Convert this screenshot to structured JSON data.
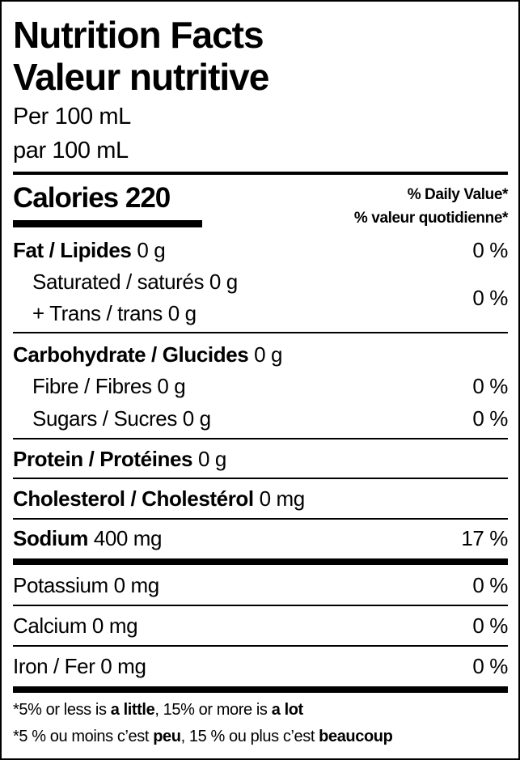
{
  "title_en": "Nutrition Facts",
  "title_fr": "Valeur nutritive",
  "serving_en": "Per 100 mL",
  "serving_fr": "par 100 mL",
  "calories": {
    "label": "Calories",
    "value": "220"
  },
  "dv_header_en": "% Daily Value*",
  "dv_header_fr": "% valeur quotidienne*",
  "rows": {
    "fat": {
      "label": "Fat / Lipides",
      "amount": "0 g",
      "dv": "0 %"
    },
    "saturated": {
      "label": "Saturated / saturés 0 g"
    },
    "trans": {
      "label": "+ Trans / trans 0 g",
      "dv": "0 %"
    },
    "carb": {
      "label": "Carbohydrate / Glucides",
      "amount": "0 g"
    },
    "fibre": {
      "label": "Fibre / Fibres 0 g",
      "dv": "0 %"
    },
    "sugars": {
      "label": "Sugars / Sucres 0 g",
      "dv": "0 %"
    },
    "protein": {
      "label": "Protein / Protéines",
      "amount": "0 g"
    },
    "cholesterol": {
      "label": "Cholesterol / Cholestérol",
      "amount": "0 mg"
    },
    "sodium": {
      "label": "Sodium",
      "amount": "400 mg",
      "dv": "17 %"
    },
    "potassium": {
      "label": "Potassium 0 mg",
      "dv": "0 %"
    },
    "calcium": {
      "label": "Calcium 0 mg",
      "dv": "0 %"
    },
    "iron": {
      "label": "Iron / Fer 0 mg",
      "dv": "0 %"
    }
  },
  "footnote_en": {
    "p1": "*5% or less is ",
    "b1": "a little",
    "p2": ", 15% or more is ",
    "b2": "a lot"
  },
  "footnote_fr": {
    "p1": "*5 % ou moins c’est ",
    "b1": "peu",
    "p2": ", 15 % ou plus c’est ",
    "b2": "beaucoup"
  }
}
